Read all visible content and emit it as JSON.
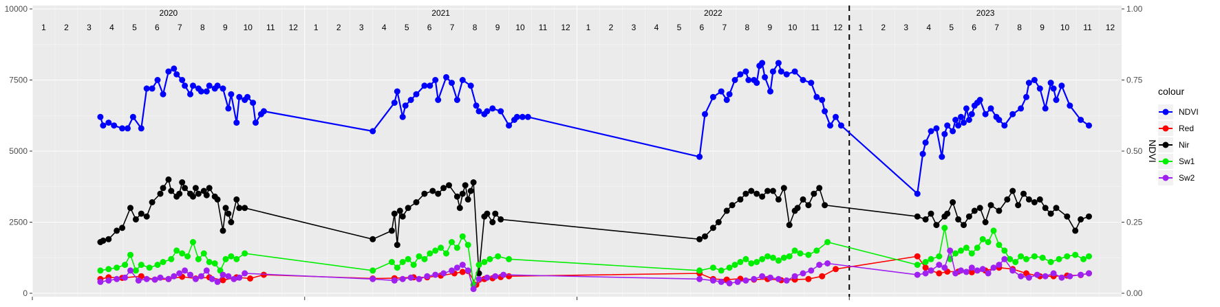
{
  "chart_data": {
    "type": "line",
    "xlabel": "",
    "ylabel": "",
    "y2label": "NDVI",
    "ylim": [
      0,
      10000
    ],
    "y2lim": [
      0,
      1
    ],
    "yticks": [
      0,
      2500,
      5000,
      7500,
      10000
    ],
    "ytick_labels": [
      "0",
      "2500",
      "5000",
      "7500",
      "10000"
    ],
    "y2ticks": [
      0,
      0.25,
      0.5,
      0.75,
      1.0
    ],
    "y2tick_labels": [
      "0.00",
      "0.25",
      "0.50",
      "0.75",
      "1.00"
    ],
    "xlim": [
      2020.0,
      2024.0
    ],
    "year_labels": [
      "2020",
      "2021",
      "2022",
      "2023"
    ],
    "year_starts": [
      2020,
      2021,
      2022,
      2023
    ],
    "month_labels": [
      "1",
      "2",
      "3",
      "4",
      "5",
      "6",
      "7",
      "8",
      "9",
      "10",
      "11",
      "12"
    ],
    "vline_x": 2023.0,
    "vline_style": "dashed",
    "grid": true,
    "legend_title": "colour",
    "legend_position": "right",
    "series": [
      {
        "name": "NDVI",
        "color": "#0000ff",
        "axis": "right",
        "x": [
          2020.25,
          2020.26,
          2020.28,
          2020.3,
          2020.33,
          2020.35,
          2020.37,
          2020.4,
          2020.42,
          2020.44,
          2020.46,
          2020.48,
          2020.5,
          2020.52,
          2020.53,
          2020.55,
          2020.56,
          2020.58,
          2020.59,
          2020.61,
          2020.62,
          2020.64,
          2020.65,
          2020.67,
          2020.68,
          2020.7,
          2020.72,
          2020.73,
          2020.75,
          2020.76,
          2020.78,
          2020.79,
          2020.81,
          2020.82,
          2020.84,
          2020.85,
          2021.25,
          2021.33,
          2021.34,
          2021.36,
          2021.37,
          2021.39,
          2021.41,
          2021.44,
          2021.46,
          2021.48,
          2021.49,
          2021.52,
          2021.54,
          2021.56,
          2021.58,
          2021.61,
          2021.63,
          2021.64,
          2021.66,
          2021.67,
          2021.69,
          2021.72,
          2021.75,
          2021.77,
          2021.78,
          2021.8,
          2021.82,
          2022.45,
          2022.47,
          2022.5,
          2022.53,
          2022.55,
          2022.56,
          2022.58,
          2022.6,
          2022.62,
          2022.63,
          2022.65,
          2022.66,
          2022.67,
          2022.68,
          2022.69,
          2022.71,
          2022.72,
          2022.74,
          2022.75,
          2022.77,
          2022.8,
          2022.83,
          2022.86,
          2022.88,
          2022.9,
          2022.91,
          2022.93,
          2022.95,
          2022.97,
          2023.25,
          2023.27,
          2023.28,
          2023.3,
          2023.32,
          2023.34,
          2023.35,
          2023.36,
          2023.38,
          2023.39,
          2023.4,
          2023.41,
          2023.42,
          2023.43,
          2023.44,
          2023.45,
          2023.46,
          2023.47,
          2023.48,
          2023.5,
          2023.52,
          2023.54,
          2023.55,
          2023.57,
          2023.6,
          2023.63,
          2023.65,
          2023.66,
          2023.68,
          2023.7,
          2023.72,
          2023.74,
          2023.75,
          2023.76,
          2023.78,
          2023.81,
          2023.85,
          2023.88
        ],
        "values": [
          0.62,
          0.59,
          0.6,
          0.59,
          0.58,
          0.58,
          0.62,
          0.58,
          0.72,
          0.72,
          0.75,
          0.7,
          0.78,
          0.79,
          0.77,
          0.75,
          0.73,
          0.7,
          0.73,
          0.72,
          0.71,
          0.71,
          0.73,
          0.72,
          0.73,
          0.72,
          0.65,
          0.7,
          0.6,
          0.69,
          0.68,
          0.69,
          0.67,
          0.6,
          0.63,
          0.64,
          0.57,
          0.67,
          0.71,
          0.62,
          0.66,
          0.68,
          0.7,
          0.73,
          0.73,
          0.75,
          0.68,
          0.76,
          0.74,
          0.68,
          0.75,
          0.73,
          0.66,
          0.64,
          0.63,
          0.64,
          0.65,
          0.64,
          0.59,
          0.61,
          0.62,
          0.62,
          0.62,
          0.48,
          0.63,
          0.69,
          0.71,
          0.68,
          0.7,
          0.75,
          0.77,
          0.78,
          0.75,
          0.75,
          0.74,
          0.8,
          0.81,
          0.76,
          0.71,
          0.78,
          0.81,
          0.78,
          0.77,
          0.78,
          0.75,
          0.74,
          0.69,
          0.68,
          0.64,
          0.59,
          0.62,
          0.59,
          0.35,
          0.49,
          0.53,
          0.57,
          0.58,
          0.48,
          0.56,
          0.59,
          0.57,
          0.61,
          0.59,
          0.62,
          0.6,
          0.65,
          0.61,
          0.63,
          0.66,
          0.67,
          0.68,
          0.63,
          0.65,
          0.62,
          0.61,
          0.59,
          0.63,
          0.65,
          0.69,
          0.74,
          0.75,
          0.72,
          0.65,
          0.74,
          0.72,
          0.68,
          0.73,
          0.66,
          0.61,
          0.59
        ],
        "values_primary": []
      },
      {
        "name": "Red",
        "color": "#ff0000",
        "axis": "left",
        "x": [
          2020.25,
          2020.28,
          2020.33,
          2020.4,
          2020.45,
          2020.5,
          2020.55,
          2020.6,
          2020.65,
          2020.7,
          2020.75,
          2020.8,
          2020.85,
          2021.25,
          2021.33,
          2021.4,
          2021.45,
          2021.5,
          2021.55,
          2021.58,
          2021.6,
          2021.63,
          2021.66,
          2021.69,
          2021.72,
          2021.75,
          2022.45,
          2022.5,
          2022.55,
          2022.6,
          2022.65,
          2022.7,
          2022.75,
          2022.8,
          2022.85,
          2022.9,
          2022.95,
          2023.25,
          2023.28,
          2023.3,
          2023.33,
          2023.36,
          2023.4,
          2023.45,
          2023.5,
          2023.55,
          2023.6,
          2023.65,
          2023.7,
          2023.75,
          2023.8,
          2023.85,
          2023.88
        ],
        "values": [
          500,
          560,
          540,
          600,
          480,
          500,
          580,
          520,
          560,
          460,
          560,
          520,
          650,
          520,
          530,
          560,
          560,
          620,
          700,
          750,
          780,
          300,
          500,
          530,
          570,
          600,
          700,
          500,
          480,
          510,
          480,
          500,
          460,
          480,
          500,
          600,
          850,
          1300,
          900,
          800,
          700,
          760,
          760,
          740,
          800,
          900,
          850,
          700,
          600,
          600,
          620,
          640,
          700
        ]
      },
      {
        "name": "Nir",
        "color": "#000000",
        "axis": "left",
        "x": [
          2020.25,
          2020.26,
          2020.28,
          2020.31,
          2020.33,
          2020.36,
          2020.38,
          2020.4,
          2020.42,
          2020.44,
          2020.47,
          2020.48,
          2020.5,
          2020.51,
          2020.53,
          2020.54,
          2020.55,
          2020.56,
          2020.58,
          2020.59,
          2020.6,
          2020.61,
          2020.63,
          2020.64,
          2020.65,
          2020.67,
          2020.68,
          2020.7,
          2020.71,
          2020.72,
          2020.73,
          2020.75,
          2020.76,
          2020.78,
          2021.25,
          2021.32,
          2021.33,
          2021.34,
          2021.35,
          2021.36,
          2021.38,
          2021.41,
          2021.44,
          2021.47,
          2021.49,
          2021.51,
          2021.53,
          2021.56,
          2021.57,
          2021.58,
          2021.59,
          2021.6,
          2021.61,
          2021.62,
          2021.64,
          2021.66,
          2021.67,
          2021.69,
          2021.7,
          2021.72,
          2022.45,
          2022.47,
          2022.5,
          2022.52,
          2022.55,
          2022.57,
          2022.6,
          2022.62,
          2022.64,
          2022.66,
          2022.68,
          2022.7,
          2022.72,
          2022.74,
          2022.76,
          2022.78,
          2022.8,
          2022.81,
          2022.83,
          2022.85,
          2022.87,
          2022.89,
          2022.91,
          2023.25,
          2023.28,
          2023.3,
          2023.32,
          2023.35,
          2023.36,
          2023.38,
          2023.4,
          2023.42,
          2023.44,
          2023.46,
          2023.48,
          2023.5,
          2023.52,
          2023.55,
          2023.58,
          2023.6,
          2023.62,
          2023.64,
          2023.66,
          2023.68,
          2023.7,
          2023.72,
          2023.74,
          2023.76,
          2023.8,
          2023.83,
          2023.85,
          2023.88
        ],
        "values": [
          1800,
          1850,
          1900,
          2200,
          2300,
          3000,
          2600,
          2800,
          2700,
          3200,
          3500,
          3700,
          4000,
          3600,
          3400,
          3500,
          3900,
          3700,
          3500,
          3400,
          3700,
          3500,
          3600,
          3450,
          3700,
          3400,
          3300,
          2200,
          3000,
          2800,
          2500,
          3300,
          3000,
          3000,
          1900,
          2200,
          2800,
          1700,
          2900,
          2700,
          3000,
          3200,
          3500,
          3600,
          3500,
          3700,
          3800,
          3400,
          3000,
          3500,
          3800,
          3300,
          3600,
          3900,
          700,
          2700,
          2800,
          2500,
          2800,
          2600,
          1900,
          2000,
          2300,
          2500,
          2900,
          3100,
          3300,
          3500,
          3600,
          3500,
          3400,
          3600,
          3600,
          3300,
          3700,
          2400,
          2900,
          3000,
          3300,
          3100,
          3500,
          3700,
          3100,
          2700,
          2600,
          2800,
          2400,
          2700,
          2800,
          3200,
          2600,
          2400,
          2700,
          2900,
          3000,
          2500,
          3100,
          2900,
          3300,
          3600,
          3100,
          3500,
          3300,
          3200,
          3300,
          3000,
          2800,
          3000,
          2700,
          2200,
          2600,
          2700
        ],
        "values_primary": []
      },
      {
        "name": "Sw1",
        "color": "#00ee00",
        "axis": "left",
        "x": [
          2020.25,
          2020.28,
          2020.31,
          2020.34,
          2020.36,
          2020.38,
          2020.4,
          2020.43,
          2020.46,
          2020.48,
          2020.51,
          2020.53,
          2020.55,
          2020.57,
          2020.59,
          2020.61,
          2020.63,
          2020.65,
          2020.67,
          2020.69,
          2020.71,
          2020.73,
          2020.75,
          2020.78,
          2021.25,
          2021.32,
          2021.34,
          2021.36,
          2021.38,
          2021.4,
          2021.42,
          2021.44,
          2021.46,
          2021.48,
          2021.5,
          2021.52,
          2021.54,
          2021.56,
          2021.58,
          2021.6,
          2021.62,
          2021.64,
          2021.66,
          2021.68,
          2021.71,
          2021.75,
          2022.45,
          2022.5,
          2022.53,
          2022.56,
          2022.58,
          2022.6,
          2022.62,
          2022.64,
          2022.66,
          2022.68,
          2022.7,
          2022.72,
          2022.74,
          2022.76,
          2022.78,
          2022.8,
          2022.82,
          2022.85,
          2022.88,
          2022.92,
          2023.25,
          2023.28,
          2023.3,
          2023.33,
          2023.35,
          2023.37,
          2023.39,
          2023.41,
          2023.43,
          2023.45,
          2023.47,
          2023.49,
          2023.51,
          2023.53,
          2023.55,
          2023.57,
          2023.59,
          2023.61,
          2023.63,
          2023.65,
          2023.68,
          2023.71,
          2023.74,
          2023.77,
          2023.8,
          2023.83,
          2023.86,
          2023.88
        ],
        "values": [
          800,
          850,
          900,
          1000,
          1350,
          800,
          1000,
          900,
          1000,
          1100,
          1200,
          1500,
          1400,
          1300,
          1800,
          1200,
          1400,
          1100,
          1050,
          800,
          1200,
          1300,
          1200,
          1400,
          800,
          1100,
          900,
          1100,
          1200,
          1000,
          1300,
          1200,
          1400,
          1500,
          1600,
          1400,
          1800,
          1600,
          2000,
          1700,
          300,
          1000,
          1100,
          1200,
          1300,
          1200,
          800,
          900,
          800,
          900,
          1000,
          1100,
          1200,
          1050,
          1100,
          1200,
          1300,
          1250,
          1150,
          1250,
          1300,
          1500,
          1400,
          1350,
          1500,
          1800,
          1000,
          1100,
          1200,
          1300,
          2300,
          1200,
          1400,
          1500,
          1600,
          1400,
          1600,
          1900,
          1800,
          2200,
          1700,
          1500,
          1200,
          1100,
          1300,
          1200,
          1300,
          1250,
          1100,
          1200,
          1300,
          1350,
          1200,
          1300
        ],
        "values_primary": []
      },
      {
        "name": "Sw2",
        "color": "#a020f0",
        "axis": "left",
        "x": [
          2020.25,
          2020.28,
          2020.31,
          2020.34,
          2020.36,
          2020.39,
          2020.42,
          2020.45,
          2020.47,
          2020.5,
          2020.52,
          2020.54,
          2020.56,
          2020.58,
          2020.6,
          2020.62,
          2020.64,
          2020.66,
          2020.68,
          2020.7,
          2020.72,
          2020.74,
          2020.76,
          2020.78,
          2021.25,
          2021.33,
          2021.36,
          2021.39,
          2021.42,
          2021.45,
          2021.48,
          2021.51,
          2021.54,
          2021.56,
          2021.58,
          2021.6,
          2021.62,
          2021.64,
          2021.67,
          2021.7,
          2021.73,
          2022.45,
          2022.5,
          2022.53,
          2022.56,
          2022.59,
          2022.62,
          2022.65,
          2022.68,
          2022.71,
          2022.74,
          2022.77,
          2022.8,
          2022.83,
          2022.86,
          2022.89,
          2022.92,
          2023.25,
          2023.28,
          2023.3,
          2023.33,
          2023.35,
          2023.37,
          2023.39,
          2023.41,
          2023.43,
          2023.45,
          2023.47,
          2023.49,
          2023.51,
          2023.53,
          2023.55,
          2023.57,
          2023.6,
          2023.63,
          2023.66,
          2023.69,
          2023.72,
          2023.75,
          2023.78,
          2023.81,
          2023.85,
          2023.88
        ],
        "values": [
          400,
          450,
          500,
          550,
          800,
          450,
          500,
          480,
          550,
          500,
          600,
          700,
          800,
          650,
          500,
          600,
          800,
          500,
          400,
          650,
          600,
          500,
          550,
          700,
          500,
          450,
          500,
          550,
          500,
          600,
          650,
          700,
          800,
          900,
          1000,
          800,
          150,
          500,
          550,
          600,
          650,
          500,
          450,
          400,
          350,
          400,
          450,
          500,
          600,
          550,
          500,
          450,
          600,
          700,
          800,
          1000,
          1050,
          650,
          700,
          800,
          1000,
          900,
          1500,
          700,
          800,
          750,
          900,
          800,
          850,
          700,
          900,
          1000,
          1200,
          800,
          600,
          550,
          650,
          600,
          700,
          550,
          600,
          650,
          700
        ]
      }
    ]
  }
}
